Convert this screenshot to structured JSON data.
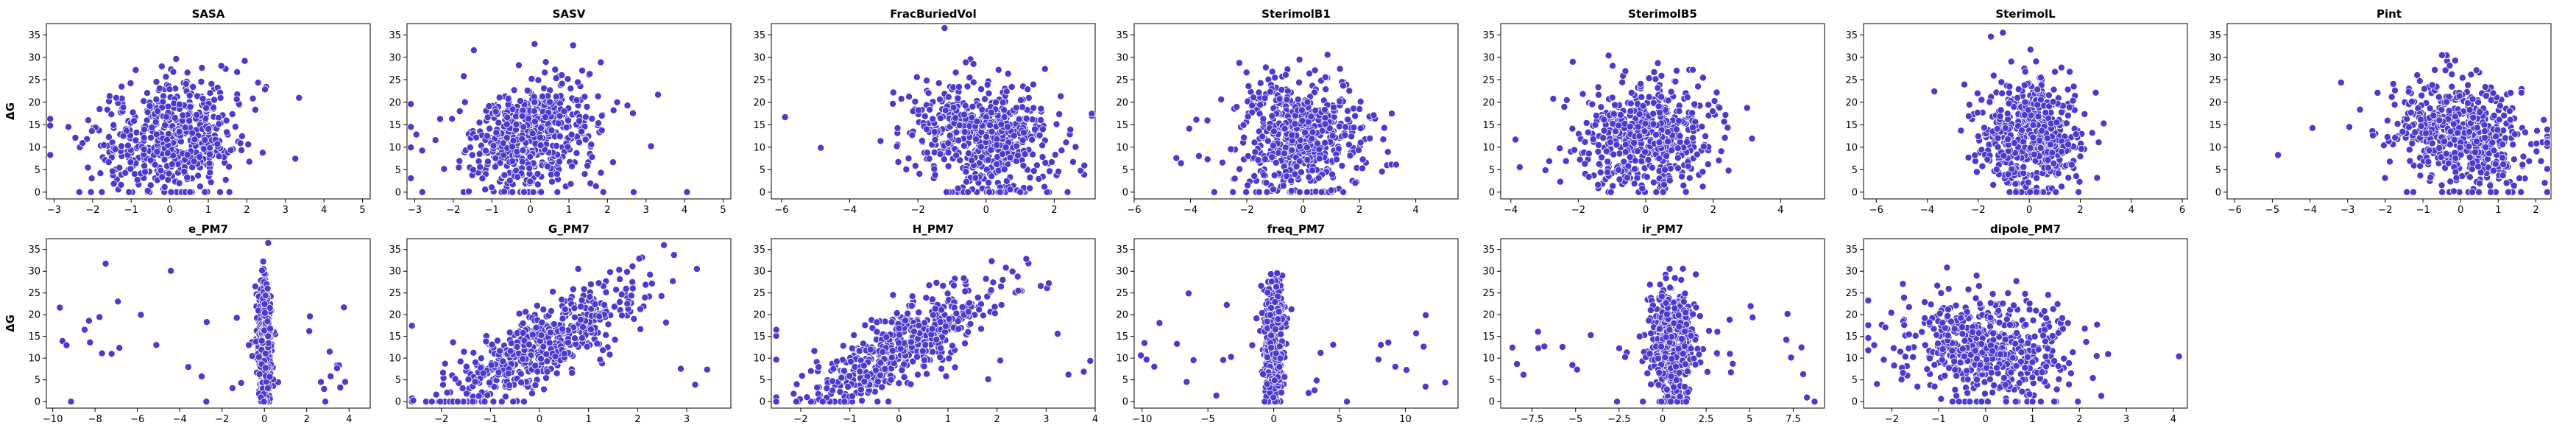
{
  "figure": {
    "point_color": "#4B3AD0",
    "point_edge": "#ffffff"
  },
  "chart_data": [
    {
      "type": "scatter",
      "title": "SASA",
      "ylabel": "ΔG",
      "xticks": [
        -3,
        -2,
        -1,
        0,
        1,
        2,
        3,
        4,
        5
      ],
      "xlim": [
        -3.2,
        5.2
      ],
      "yticks": [
        0,
        5,
        10,
        15,
        20,
        25,
        30,
        35
      ],
      "ylim": [
        -1.5,
        37.5
      ],
      "n": 550,
      "pattern": "cloud",
      "cx": 0.0,
      "sx": 0.9,
      "y_mean": 12.5,
      "y_sd": 6.5,
      "corr": 0.2
    },
    {
      "type": "scatter",
      "title": "SASV",
      "ylabel": "",
      "xticks": [
        -3,
        -2,
        -1,
        0,
        1,
        2,
        3,
        4,
        5
      ],
      "xlim": [
        -3.2,
        5.2
      ],
      "yticks": [
        0,
        5,
        10,
        15,
        20,
        25,
        30,
        35
      ],
      "ylim": [
        -1.5,
        37.5
      ],
      "n": 550,
      "pattern": "cloud",
      "cx": 0.0,
      "sx": 0.9,
      "y_mean": 12.5,
      "y_sd": 6.5,
      "corr": 0.2
    },
    {
      "type": "scatter",
      "title": "FracBuriedVol",
      "ylabel": "",
      "xticks": [
        -6,
        -4,
        -2,
        0,
        2
      ],
      "xlim": [
        -6.3,
        3.2
      ],
      "yticks": [
        0,
        5,
        10,
        15,
        20,
        25,
        30,
        35
      ],
      "ylim": [
        -1.5,
        37.5
      ],
      "n": 550,
      "pattern": "cloud",
      "cx": 0.0,
      "sx": 1.1,
      "y_mean": 12.5,
      "y_sd": 6.5,
      "corr": -0.15
    },
    {
      "type": "scatter",
      "title": "SterimolB1",
      "ylabel": "",
      "xticks": [
        -6,
        -4,
        -2,
        0,
        2,
        4
      ],
      "xlim": [
        -6.0,
        5.5
      ],
      "yticks": [
        0,
        5,
        10,
        15,
        20,
        25,
        30,
        35
      ],
      "ylim": [
        -1.5,
        37.5
      ],
      "n": 550,
      "pattern": "cloud",
      "cx": 0.0,
      "sx": 1.1,
      "y_mean": 12.5,
      "y_sd": 6.5,
      "corr": 0.0
    },
    {
      "type": "scatter",
      "title": "SterimolB5",
      "ylabel": "",
      "xticks": [
        -4,
        -2,
        0,
        2,
        4
      ],
      "xlim": [
        -4.3,
        5.3
      ],
      "yticks": [
        0,
        5,
        10,
        15,
        20,
        25,
        30,
        35
      ],
      "ylim": [
        -1.5,
        37.5
      ],
      "n": 550,
      "pattern": "cloud",
      "cx": 0.0,
      "sx": 1.0,
      "y_mean": 12.5,
      "y_sd": 6.5,
      "corr": 0.1
    },
    {
      "type": "scatter",
      "title": "SterimolL",
      "ylabel": "",
      "xticks": [
        -6,
        -4,
        -2,
        0,
        2,
        4,
        6
      ],
      "xlim": [
        -6.5,
        6.2
      ],
      "yticks": [
        0,
        5,
        10,
        15,
        20,
        25,
        30,
        35
      ],
      "ylim": [
        -1.5,
        37.5
      ],
      "n": 550,
      "pattern": "cloud",
      "cx": 0.0,
      "sx": 1.0,
      "y_mean": 12.5,
      "y_sd": 6.5,
      "corr": 0.0
    },
    {
      "type": "scatter",
      "title": "Pint",
      "ylabel": "",
      "xticks": [
        -6,
        -5,
        -4,
        -3,
        -2,
        -1,
        0,
        1,
        2
      ],
      "xlim": [
        -6.2,
        2.4
      ],
      "yticks": [
        0,
        5,
        10,
        15,
        20,
        25,
        30,
        35
      ],
      "ylim": [
        -1.5,
        37.5
      ],
      "n": 550,
      "pattern": "cloud",
      "cx": 0.0,
      "sx": 0.9,
      "y_mean": 12.5,
      "y_sd": 6.5,
      "corr": -0.2
    },
    {
      "type": "scatter",
      "title": "e_PM7",
      "ylabel": "ΔG",
      "xticks": [
        -10,
        -8,
        -6,
        -4,
        -2,
        0,
        2,
        4
      ],
      "xlim": [
        -10.3,
        5.0
      ],
      "yticks": [
        0,
        5,
        10,
        15,
        20,
        25,
        30,
        35
      ],
      "ylim": [
        -1.5,
        37.5
      ],
      "n": 520,
      "pattern": "spike",
      "cx": 0.0,
      "sx": 0.15,
      "y_mean": 13.0,
      "y_sd": 7.0,
      "corr": 0.0
    },
    {
      "type": "scatter",
      "title": "G_PM7",
      "ylabel": "",
      "xticks": [
        -2,
        -1,
        0,
        1,
        2,
        3
      ],
      "xlim": [
        -2.7,
        3.9
      ],
      "yticks": [
        0,
        5,
        10,
        15,
        20,
        25,
        30,
        35
      ],
      "ylim": [
        -1.5,
        37.5
      ],
      "n": 550,
      "pattern": "cloud",
      "cx": 0.0,
      "sx": 1.0,
      "y_mean": 12.5,
      "y_sd": 7.5,
      "corr": 0.8
    },
    {
      "type": "scatter",
      "title": "H_PM7",
      "ylabel": "",
      "xticks": [
        -2,
        -1,
        0,
        1,
        2,
        3,
        4
      ],
      "xlim": [
        -2.6,
        4.0
      ],
      "yticks": [
        0,
        5,
        10,
        15,
        20,
        25,
        30,
        35
      ],
      "ylim": [
        -1.5,
        37.5
      ],
      "n": 550,
      "pattern": "cloud",
      "cx": 0.0,
      "sx": 1.0,
      "y_mean": 12.5,
      "y_sd": 7.5,
      "corr": 0.8
    },
    {
      "type": "scatter",
      "title": "freq_PM7",
      "ylabel": "",
      "xticks": [
        -10,
        -5,
        0,
        5,
        10
      ],
      "xlim": [
        -10.6,
        14.0
      ],
      "yticks": [
        0,
        5,
        10,
        15,
        20,
        25,
        30,
        35
      ],
      "ylim": [
        -1.5,
        37.5
      ],
      "n": 520,
      "pattern": "spike",
      "cx": 0.0,
      "sx": 0.35,
      "y_mean": 13.0,
      "y_sd": 7.0,
      "corr": 0.0
    },
    {
      "type": "scatter",
      "title": "ir_PM7",
      "ylabel": "",
      "xticks": [
        -7.5,
        -5.0,
        -2.5,
        0.0,
        2.5,
        5.0,
        7.5
      ],
      "xlim": [
        -9.3,
        9.3
      ],
      "yticks": [
        0,
        5,
        10,
        15,
        20,
        25,
        30,
        35
      ],
      "ylim": [
        -1.5,
        37.5
      ],
      "n": 520,
      "pattern": "spike",
      "cx": 0.5,
      "sx": 0.65,
      "y_mean": 13.0,
      "y_sd": 7.0,
      "corr": 0.0
    },
    {
      "type": "scatter",
      "title": "dipole_PM7",
      "ylabel": "",
      "xticks": [
        -2,
        -1,
        0,
        1,
        2,
        3,
        4
      ],
      "xlim": [
        -2.6,
        4.3
      ],
      "yticks": [
        0,
        5,
        10,
        15,
        20,
        25,
        30,
        35
      ],
      "ylim": [
        -1.5,
        37.5
      ],
      "n": 550,
      "pattern": "cloud",
      "cx": 0.0,
      "sx": 0.9,
      "y_mean": 12.5,
      "y_sd": 6.5,
      "corr": -0.1
    }
  ]
}
